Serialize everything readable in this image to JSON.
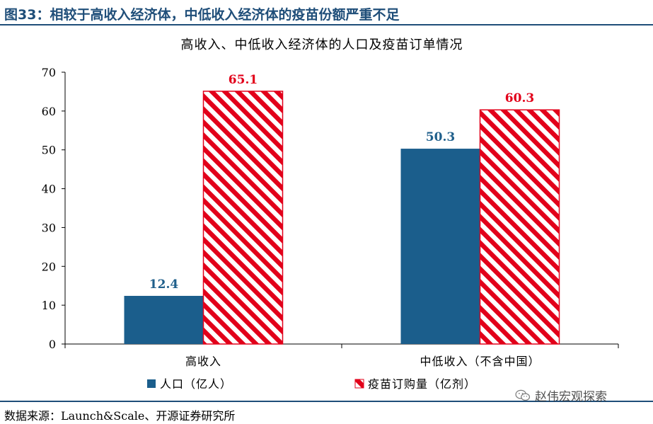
{
  "figure_title": "图33：相较于高收入经济体，中低收入经济体的疫苗份额严重不足",
  "source_text": "数据来源：Launch&Scale、开源证券研究所",
  "watermark_text": "赵伟宏观探索",
  "watermark_icon": "wechat-icon",
  "colors": {
    "accent": "#1f4e79",
    "population": "#1b5e8c",
    "vaccine": "#e2001a",
    "population_label": "#1f5f8b",
    "vaccine_label": "#e2001a"
  },
  "chart_data": {
    "type": "bar",
    "title": "高收入、中低收入经济体的人口及疫苗订单情况",
    "categories": [
      "高收入",
      "中低收入（不含中国）"
    ],
    "series": [
      {
        "name": "人口（亿人）",
        "values": [
          12.4,
          50.3
        ],
        "pattern": "solid"
      },
      {
        "name": "疫苗订购量（亿剂）",
        "values": [
          65.1,
          60.3
        ],
        "pattern": "hatched"
      }
    ],
    "data_labels": [
      [
        "12.4",
        "50.3"
      ],
      [
        "65.1",
        "60.3"
      ]
    ],
    "ylim": [
      0,
      70
    ],
    "yticks": [
      0,
      10,
      20,
      30,
      40,
      50,
      60,
      70
    ],
    "ytick_labels": [
      "0",
      "10",
      "20",
      "30",
      "40",
      "50",
      "60",
      "70"
    ],
    "xlabel": "",
    "ylabel": "",
    "grid": false,
    "legend_position": "bottom-left"
  }
}
